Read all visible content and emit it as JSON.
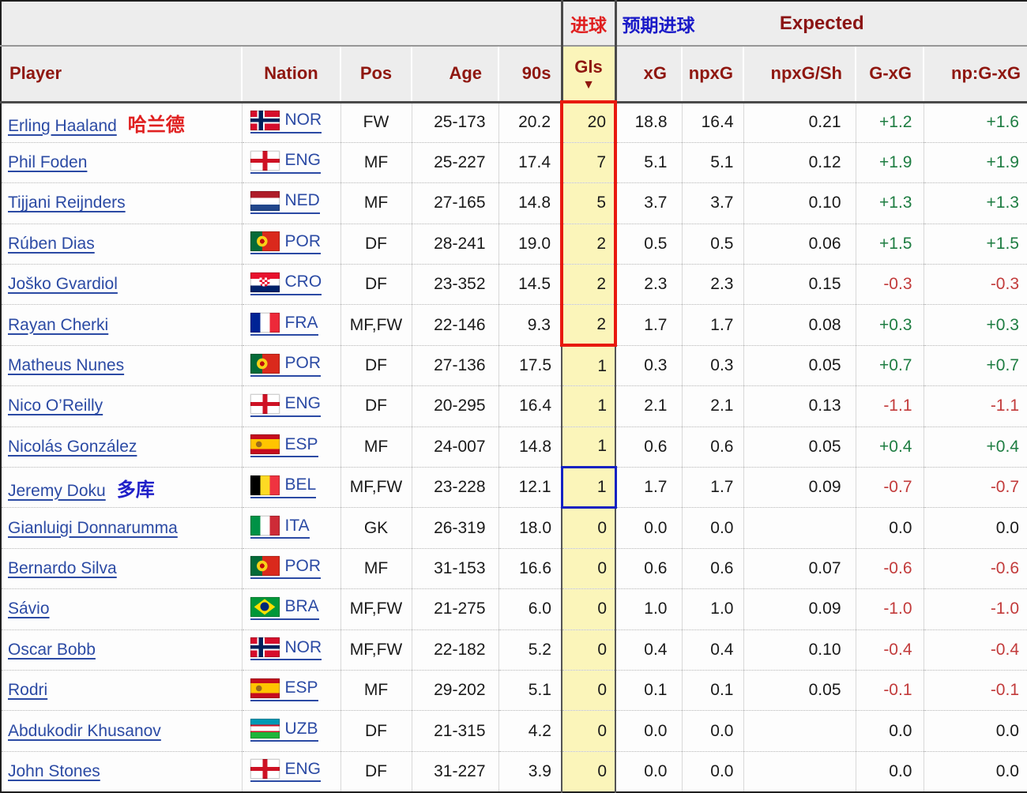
{
  "table": {
    "top_header": {
      "gls_annotation": "进球",
      "expected_annotation_cn": "预期进球",
      "expected_label": "Expected"
    },
    "sort_icon": "▼",
    "columns": [
      {
        "key": "player",
        "label": "Player"
      },
      {
        "key": "nation",
        "label": "Nation"
      },
      {
        "key": "pos",
        "label": "Pos"
      },
      {
        "key": "age",
        "label": "Age"
      },
      {
        "key": "min90s",
        "label": "90s"
      },
      {
        "key": "gls",
        "label": "Gls"
      },
      {
        "key": "xg",
        "label": "xG"
      },
      {
        "key": "npxg",
        "label": "npxG"
      },
      {
        "key": "npxg_sh",
        "label": "npxG/Sh"
      },
      {
        "key": "g_xg",
        "label": "G-xG"
      },
      {
        "key": "np_g_xg",
        "label": "np:G-xG"
      }
    ],
    "players": [
      {
        "name": "Erling Haaland",
        "annotation": {
          "text": "哈兰德",
          "color": "red"
        },
        "nation": "NOR",
        "pos": "FW",
        "age": "25-173",
        "min90s": "20.2",
        "gls": "20",
        "xg": "18.8",
        "npxg": "16.4",
        "npxg_sh": "0.21",
        "g_xg": "+1.2",
        "np_g_xg": "+1.6"
      },
      {
        "name": "Phil Foden",
        "nation": "ENG",
        "pos": "MF",
        "age": "25-227",
        "min90s": "17.4",
        "gls": "7",
        "xg": "5.1",
        "npxg": "5.1",
        "npxg_sh": "0.12",
        "g_xg": "+1.9",
        "np_g_xg": "+1.9"
      },
      {
        "name": "Tijjani Reijnders",
        "nation": "NED",
        "pos": "MF",
        "age": "27-165",
        "min90s": "14.8",
        "gls": "5",
        "xg": "3.7",
        "npxg": "3.7",
        "npxg_sh": "0.10",
        "g_xg": "+1.3",
        "np_g_xg": "+1.3"
      },
      {
        "name": "Rúben Dias",
        "nation": "POR",
        "pos": "DF",
        "age": "28-241",
        "min90s": "19.0",
        "gls": "2",
        "xg": "0.5",
        "npxg": "0.5",
        "npxg_sh": "0.06",
        "g_xg": "+1.5",
        "np_g_xg": "+1.5"
      },
      {
        "name": "Joško Gvardiol",
        "nation": "CRO",
        "pos": "DF",
        "age": "23-352",
        "min90s": "14.5",
        "gls": "2",
        "xg": "2.3",
        "npxg": "2.3",
        "npxg_sh": "0.15",
        "g_xg": "-0.3",
        "np_g_xg": "-0.3"
      },
      {
        "name": "Rayan Cherki",
        "nation": "FRA",
        "pos": "MF,FW",
        "age": "22-146",
        "min90s": "9.3",
        "gls": "2",
        "xg": "1.7",
        "npxg": "1.7",
        "npxg_sh": "0.08",
        "g_xg": "+0.3",
        "np_g_xg": "+0.3"
      },
      {
        "name": "Matheus Nunes",
        "nation": "POR",
        "pos": "DF",
        "age": "27-136",
        "min90s": "17.5",
        "gls": "1",
        "xg": "0.3",
        "npxg": "0.3",
        "npxg_sh": "0.05",
        "g_xg": "+0.7",
        "np_g_xg": "+0.7"
      },
      {
        "name": "Nico O’Reilly",
        "nation": "ENG",
        "pos": "DF",
        "age": "20-295",
        "min90s": "16.4",
        "gls": "1",
        "xg": "2.1",
        "npxg": "2.1",
        "npxg_sh": "0.13",
        "g_xg": "-1.1",
        "np_g_xg": "-1.1"
      },
      {
        "name": "Nicolás González",
        "nation": "ESP",
        "pos": "MF",
        "age": "24-007",
        "min90s": "14.8",
        "gls": "1",
        "xg": "0.6",
        "npxg": "0.6",
        "npxg_sh": "0.05",
        "g_xg": "+0.4",
        "np_g_xg": "+0.4"
      },
      {
        "name": "Jeremy Doku",
        "annotation": {
          "text": "多库",
          "color": "blue"
        },
        "nation": "BEL",
        "pos": "MF,FW",
        "age": "23-228",
        "min90s": "12.1",
        "gls": "1",
        "xg": "1.7",
        "npxg": "1.7",
        "npxg_sh": "0.09",
        "g_xg": "-0.7",
        "np_g_xg": "-0.7"
      },
      {
        "name": "Gianluigi Donnarumma",
        "nation": "ITA",
        "pos": "GK",
        "age": "26-319",
        "min90s": "18.0",
        "gls": "0",
        "xg": "0.0",
        "npxg": "0.0",
        "npxg_sh": "",
        "g_xg": "0.0",
        "np_g_xg": "0.0"
      },
      {
        "name": "Bernardo Silva",
        "nation": "POR",
        "pos": "MF",
        "age": "31-153",
        "min90s": "16.6",
        "gls": "0",
        "xg": "0.6",
        "npxg": "0.6",
        "npxg_sh": "0.07",
        "g_xg": "-0.6",
        "np_g_xg": "-0.6"
      },
      {
        "name": "Sávio",
        "nation": "BRA",
        "pos": "MF,FW",
        "age": "21-275",
        "min90s": "6.0",
        "gls": "0",
        "xg": "1.0",
        "npxg": "1.0",
        "npxg_sh": "0.09",
        "g_xg": "-1.0",
        "np_g_xg": "-1.0"
      },
      {
        "name": "Oscar Bobb",
        "nation": "NOR",
        "pos": "MF,FW",
        "age": "22-182",
        "min90s": "5.2",
        "gls": "0",
        "xg": "0.4",
        "npxg": "0.4",
        "npxg_sh": "0.10",
        "g_xg": "-0.4",
        "np_g_xg": "-0.4"
      },
      {
        "name": "Rodri",
        "nation": "ESP",
        "pos": "MF",
        "age": "29-202",
        "min90s": "5.1",
        "gls": "0",
        "xg": "0.1",
        "npxg": "0.1",
        "npxg_sh": "0.05",
        "g_xg": "-0.1",
        "np_g_xg": "-0.1"
      },
      {
        "name": "Abdukodir Khusanov",
        "nation": "UZB",
        "pos": "DF",
        "age": "21-315",
        "min90s": "4.2",
        "gls": "0",
        "xg": "0.0",
        "npxg": "0.0",
        "npxg_sh": "",
        "g_xg": "0.0",
        "np_g_xg": "0.0"
      },
      {
        "name": "John Stones",
        "nation": "ENG",
        "pos": "DF",
        "age": "31-227",
        "min90s": "3.9",
        "gls": "0",
        "xg": "0.0",
        "npxg": "0.0",
        "npxg_sh": "",
        "g_xg": "0.0",
        "np_g_xg": "0.0"
      }
    ],
    "highlights": {
      "red_box_gls_rows": [
        0,
        5
      ],
      "blue_box_gls_row": 9
    },
    "colors": {
      "positive_value": "#1e7d42",
      "negative_value": "#c23b3b",
      "red_box": "#e8190f",
      "blue_box": "#1322c2",
      "gls_column_bg": "#fbf5ba",
      "link": "#2b4aa4",
      "header_text": "#8f1710",
      "annotation_red": "#e02020",
      "annotation_blue": "#1f1fc8"
    }
  }
}
